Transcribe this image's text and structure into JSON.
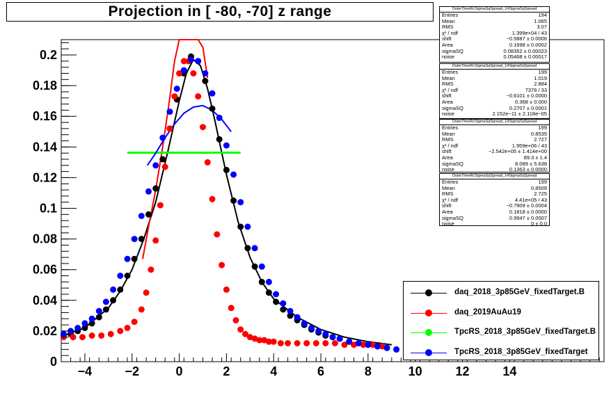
{
  "title": "Projection in [ -80, -70] z range",
  "stat_boxes": [
    {
      "title": "OuterTimeRcSigmaSqSpread_14SigmaSqSpread",
      "rows": [
        [
          "Entries",
          "194"
        ],
        [
          "Mean",
          "1.065"
        ],
        [
          "RMS",
          "3.07"
        ],
        [
          "χ² / ndf",
          "1.399e+04 / 43"
        ],
        [
          "shift",
          "−0.5887 ± 0.0006"
        ],
        [
          "Area",
          "0.1698 ± 0.0002"
        ],
        [
          "sigmaSQ",
          "0.08352 ± 0.00023"
        ],
        [
          "noise",
          "0.05468 ± 0.00017"
        ]
      ]
    },
    {
      "title": "OuterTimeRcSigmaSqSpread_14SigmaSqSpread",
      "rows": [
        [
          "Entries",
          "199"
        ],
        [
          "Mean",
          "1.019"
        ],
        [
          "RMS",
          "2.884"
        ],
        [
          "χ² / ndf",
          "7376 / 33"
        ],
        [
          "shift",
          "−0.6101 ± 0.0000"
        ],
        [
          "Area",
          "0.368 ± 0.000"
        ],
        [
          "sigmaSQ",
          "0.2707 ± 0.0001"
        ],
        [
          "noise",
          "2.152e−11 ± 2.118e−05"
        ]
      ]
    },
    {
      "title": "OuterTimeRcSigmaSqSpread_14SigmaSqSpread",
      "rows": [
        [
          "Entries",
          "199"
        ],
        [
          "Mean",
          "0.8535"
        ],
        [
          "RMS",
          "2.727"
        ],
        [
          "χ² / ndf",
          "1.959e+06 / 43"
        ],
        [
          "shift",
          "−2.542e+05 ± 1.414e+00"
        ],
        [
          "Area",
          "89.3 ± 1.4"
        ],
        [
          "sigmaSQ",
          "8.089 ± 5.638"
        ],
        [
          "noise",
          "0.1363 ± 0.0000"
        ]
      ]
    },
    {
      "title": "OuterTimeRcSigmaSqSpread_14SigmaSqSpread",
      "rows": [
        [
          "Entries",
          "199"
        ],
        [
          "Mean",
          "0.8509"
        ],
        [
          "RMS",
          "2.725"
        ],
        [
          "χ² / ndf",
          "4.41e+05 / 43"
        ],
        [
          "shift",
          "−0.7909 ± 0.0004"
        ],
        [
          "Area",
          "0.1818 ± 0.0000"
        ],
        [
          "sigmaSQ",
          "0.9947 ± 0.0007"
        ],
        [
          "noise",
          "0 ± 0.0"
        ]
      ]
    }
  ],
  "legend": [
    {
      "label": "daq_2018_3p85GeV_fixedTarget.B",
      "color": "#000000"
    },
    {
      "label": "daq_2019AuAu19",
      "color": "#ff0000"
    },
    {
      "label": "TpcRS_2018_3p85GeV_fixedTarget.B",
      "color": "#00ff00"
    },
    {
      "label": "TpcRS_2018_3p85GeV_fixedTarget",
      "color": "#0000ff"
    }
  ],
  "chart_data": {
    "type": "scatter",
    "title": "Projection in [ -80, -70] z range",
    "xlabel": "",
    "ylabel": "",
    "xlim": [
      -5,
      18
    ],
    "ylim": [
      0,
      0.21
    ],
    "x_ticks": [
      -4,
      -2,
      0,
      2,
      4,
      6,
      8,
      10,
      12,
      14
    ],
    "y_ticks": [
      0,
      0.02,
      0.04,
      0.06,
      0.08,
      0.1,
      0.12,
      0.14,
      0.16,
      0.18,
      0.2
    ],
    "x_tick_labels": [
      "−4",
      "−2",
      "0",
      "2",
      "4",
      "6",
      "8",
      "10",
      "12",
      "14"
    ],
    "y_tick_labels": [
      "0",
      "0.02",
      "0.04",
      "0.06",
      "0.08",
      "0.1",
      "0.12",
      "0.14",
      "0.16",
      "0.18",
      "0.2"
    ],
    "grid": false,
    "legend_position": "bottom-right",
    "series": [
      {
        "name": "daq_2018_3p85GeV_fixedTarget.B",
        "color": "#000000",
        "x": [
          -4.9,
          -4.6,
          -4.3,
          -4.0,
          -3.7,
          -3.4,
          -3.1,
          -2.8,
          -2.5,
          -2.2,
          -1.9,
          -1.6,
          -1.3,
          -1.0,
          -0.7,
          -0.4,
          -0.1,
          0.2,
          0.5,
          0.8,
          1.1,
          1.4,
          1.7,
          2.0,
          2.3,
          2.6,
          2.9,
          3.2,
          3.5,
          3.8,
          4.1,
          4.4,
          4.7,
          5.0,
          5.3,
          5.6,
          5.9,
          6.2,
          6.5,
          6.8,
          7.2,
          7.6,
          8.0,
          8.4,
          8.8,
          9.2
        ],
        "y": [
          0.017,
          0.018,
          0.02,
          0.022,
          0.025,
          0.029,
          0.034,
          0.04,
          0.047,
          0.056,
          0.067,
          0.08,
          0.096,
          0.113,
          0.132,
          0.152,
          0.171,
          0.188,
          0.199,
          0.196,
          0.183,
          0.165,
          0.145,
          0.125,
          0.105,
          0.088,
          0.074,
          0.062,
          0.052,
          0.045,
          0.039,
          0.034,
          0.03,
          0.027,
          0.024,
          0.021,
          0.019,
          0.017,
          0.016,
          0.015,
          0.013,
          0.012,
          0.011,
          0.01,
          0.009,
          0.008
        ]
      },
      {
        "name": "daq_2019AuAu19",
        "color": "#ff0000",
        "x": [
          -4.9,
          -4.5,
          -4.1,
          -3.7,
          -3.3,
          -2.9,
          -2.5,
          -2.2,
          -1.9,
          -1.6,
          -1.4,
          -1.2,
          -1.0,
          -0.8,
          -0.6,
          -0.4,
          -0.2,
          0.0,
          0.2,
          0.4,
          0.6,
          0.8,
          1.0,
          1.2,
          1.4,
          1.6,
          1.8,
          2.0,
          2.2,
          2.4,
          2.6,
          2.8,
          3.0,
          3.2,
          3.4,
          3.6,
          3.8,
          4.0,
          4.3,
          4.6,
          5.0,
          5.4,
          5.8,
          6.2,
          6.6,
          7.0,
          7.4,
          7.8,
          8.2,
          8.6
        ],
        "y": [
          0.016,
          0.016,
          0.016,
          0.017,
          0.017,
          0.018,
          0.02,
          0.022,
          0.026,
          0.034,
          0.045,
          0.06,
          0.079,
          0.102,
          0.127,
          0.152,
          0.173,
          0.188,
          0.196,
          0.196,
          0.188,
          0.173,
          0.153,
          0.13,
          0.106,
          0.083,
          0.063,
          0.047,
          0.035,
          0.027,
          0.021,
          0.018,
          0.016,
          0.015,
          0.014,
          0.014,
          0.013,
          0.013,
          0.012,
          0.012,
          0.012,
          0.012,
          0.012,
          0.012,
          0.012,
          0.011,
          0.011,
          0.011,
          0.011,
          0.01
        ]
      },
      {
        "name": "TpcRS_2018_3p85GeV_fixedTarget",
        "color": "#0000ff",
        "x": [
          -4.9,
          -4.6,
          -4.3,
          -4.0,
          -3.7,
          -3.4,
          -3.1,
          -2.8,
          -2.5,
          -2.2,
          -1.9,
          -1.6,
          -1.3,
          -1.0,
          -0.7,
          -0.4,
          -0.1,
          0.2,
          0.5,
          0.8,
          1.1,
          1.4,
          1.7,
          2.0,
          2.3,
          2.6,
          2.9,
          3.2,
          3.5,
          3.8,
          4.1,
          4.4,
          4.7,
          5.0,
          5.3,
          5.6,
          5.9,
          6.2,
          6.5,
          6.8,
          7.2,
          7.6,
          8.0,
          8.4,
          8.8,
          9.2
        ],
        "y": [
          0.018,
          0.02,
          0.022,
          0.025,
          0.028,
          0.033,
          0.039,
          0.047,
          0.056,
          0.067,
          0.08,
          0.095,
          0.111,
          0.128,
          0.146,
          0.163,
          0.178,
          0.19,
          0.197,
          0.196,
          0.188,
          0.175,
          0.159,
          0.141,
          0.122,
          0.104,
          0.088,
          0.074,
          0.062,
          0.052,
          0.044,
          0.038,
          0.033,
          0.029,
          0.025,
          0.022,
          0.02,
          0.018,
          0.016,
          0.015,
          0.013,
          0.012,
          0.011,
          0.01,
          0.009,
          0.008
        ]
      }
    ],
    "fits": [
      {
        "name": "daq_2018_3p85GeV_fixedTarget.B fit",
        "color": "#000000",
        "x": [
          -4.9,
          -4.0,
          -3.0,
          -2.5,
          -2.0,
          -1.5,
          -1.0,
          -0.5,
          0.0,
          0.3,
          0.6,
          0.9,
          1.2,
          1.5,
          2.0,
          2.5,
          3.0,
          3.5,
          4.0,
          5.0,
          6.0,
          7.0,
          8.0,
          9.0
        ],
        "y": [
          0.017,
          0.022,
          0.035,
          0.046,
          0.06,
          0.08,
          0.104,
          0.136,
          0.17,
          0.188,
          0.197,
          0.193,
          0.178,
          0.158,
          0.122,
          0.091,
          0.068,
          0.052,
          0.041,
          0.029,
          0.021,
          0.016,
          0.013,
          0.011
        ]
      },
      {
        "name": "daq_2019AuAu19 fit",
        "color": "#ff0000",
        "x": [
          -1.55,
          -1.3,
          -1.0,
          -0.7,
          -0.4,
          -0.2,
          0.0,
          0.2,
          0.4,
          0.6,
          0.8,
          1.0,
          1.2
        ],
        "y": [
          0.067,
          0.088,
          0.112,
          0.14,
          0.172,
          0.196,
          0.215,
          0.23,
          0.235,
          0.232,
          0.222,
          0.205,
          0.185
        ]
      },
      {
        "name": "TpcRS_2018_3p85GeV_fixedTarget.B",
        "color": "#00ff00",
        "x": [
          -2.2,
          2.6
        ],
        "y": [
          0.1363,
          0.1363
        ]
      },
      {
        "name": "TpcRS_2018_3p85GeV_fixedTarget fit",
        "color": "#0000ff",
        "x": [
          -1.35,
          -1.0,
          -0.6,
          -0.2,
          0.2,
          0.6,
          1.0,
          1.4,
          1.8,
          2.2
        ],
        "y": [
          0.128,
          0.136,
          0.146,
          0.155,
          0.162,
          0.166,
          0.167,
          0.164,
          0.158,
          0.15
        ]
      }
    ]
  }
}
